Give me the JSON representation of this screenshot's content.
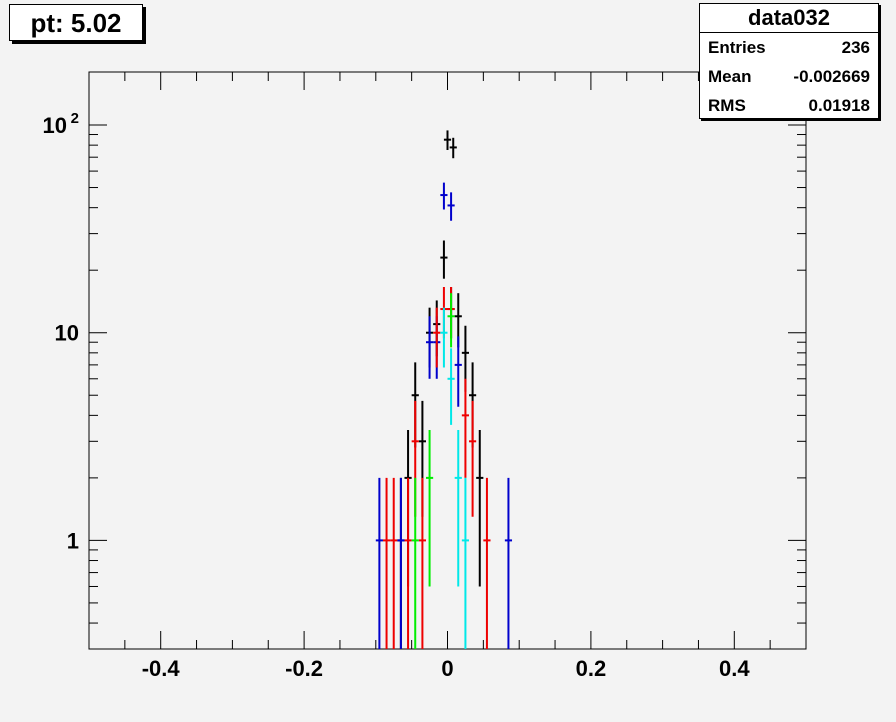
{
  "title_label": "pt: 5.02",
  "stats": {
    "name": "data032",
    "rows": [
      {
        "label": "Entries",
        "value": "236"
      },
      {
        "label": "Mean",
        "value": "-0.002669"
      },
      {
        "label": "RMS",
        "value": "0.01918"
      }
    ]
  },
  "chart_data": {
    "type": "scatter",
    "title": "pt: 5.02",
    "xlabel": "",
    "ylabel": "",
    "xlim": [
      -0.5,
      0.5
    ],
    "ylim": [
      0.3,
      180
    ],
    "log_y": true,
    "grid": false,
    "x_ticks": [
      {
        "value": -0.4,
        "label": "-0.4"
      },
      {
        "value": -0.2,
        "label": "-0.2"
      },
      {
        "value": 0,
        "label": "0"
      },
      {
        "value": 0.2,
        "label": "0.2"
      },
      {
        "value": 0.4,
        "label": "0.4"
      }
    ],
    "y_ticks": [
      {
        "value": 1,
        "label": "1"
      },
      {
        "value": 10,
        "label": "10"
      },
      {
        "value": 100,
        "label": "10",
        "sup": "2"
      }
    ],
    "bin_width": 0.01,
    "series": [
      {
        "color": "#000000",
        "points": [
          {
            "x": -0.065,
            "y": 1,
            "err": 1
          },
          {
            "x": -0.055,
            "y": 2,
            "err": 1.4
          },
          {
            "x": -0.045,
            "y": 5,
            "err": 2.2
          },
          {
            "x": -0.035,
            "y": 3,
            "err": 1.7
          },
          {
            "x": -0.025,
            "y": 10,
            "err": 3.2
          },
          {
            "x": -0.015,
            "y": 11,
            "err": 3.3
          },
          {
            "x": -0.005,
            "y": 23,
            "err": 4.8
          },
          {
            "x": 0.0,
            "y": 85,
            "err": 9.2
          },
          {
            "x": 0.005,
            "y": 13,
            "err": 3.6
          },
          {
            "x": 0.015,
            "y": 12,
            "err": 3.5
          },
          {
            "x": 0.025,
            "y": 8,
            "err": 2.8
          },
          {
            "x": 0.035,
            "y": 5,
            "err": 2.2
          },
          {
            "x": 0.045,
            "y": 2,
            "err": 1.4
          },
          {
            "x": 0.008,
            "y": 78,
            "err": 8.8
          }
        ]
      },
      {
        "color": "#0000cc",
        "points": [
          {
            "x": -0.095,
            "y": 1,
            "err": 1
          },
          {
            "x": -0.065,
            "y": 1,
            "err": 1
          },
          {
            "x": -0.025,
            "y": 9,
            "err": 3
          },
          {
            "x": -0.015,
            "y": 9,
            "err": 3
          },
          {
            "x": -0.005,
            "y": 46,
            "err": 6.8
          },
          {
            "x": 0.005,
            "y": 41,
            "err": 6.4
          },
          {
            "x": 0.015,
            "y": 7,
            "err": 2.6
          },
          {
            "x": 0.085,
            "y": 1,
            "err": 1
          }
        ]
      },
      {
        "color": "#ee0000",
        "points": [
          {
            "x": -0.085,
            "y": 1,
            "err": 1
          },
          {
            "x": -0.075,
            "y": 1,
            "err": 1
          },
          {
            "x": -0.055,
            "y": 1,
            "err": 1
          },
          {
            "x": -0.045,
            "y": 3,
            "err": 1.7
          },
          {
            "x": -0.035,
            "y": 1,
            "err": 1
          },
          {
            "x": -0.015,
            "y": 10,
            "err": 3.2
          },
          {
            "x": -0.005,
            "y": 13,
            "err": 3.6
          },
          {
            "x": 0.005,
            "y": 13,
            "err": 3.6
          },
          {
            "x": 0.025,
            "y": 4,
            "err": 2
          },
          {
            "x": 0.035,
            "y": 3,
            "err": 1.7
          },
          {
            "x": 0.055,
            "y": 1,
            "err": 1
          }
        ]
      },
      {
        "color": "#00ee00",
        "points": [
          {
            "x": -0.045,
            "y": 1,
            "err": 1
          },
          {
            "x": -0.025,
            "y": 2,
            "err": 1.4
          },
          {
            "x": 0.005,
            "y": 12,
            "err": 3.5
          }
        ]
      },
      {
        "color": "#00e8e8",
        "points": [
          {
            "x": -0.005,
            "y": 10,
            "err": 3.2
          },
          {
            "x": 0.005,
            "y": 6,
            "err": 2.4
          },
          {
            "x": 0.015,
            "y": 2,
            "err": 1.4
          },
          {
            "x": 0.025,
            "y": 1,
            "err": 1
          }
        ]
      }
    ]
  }
}
